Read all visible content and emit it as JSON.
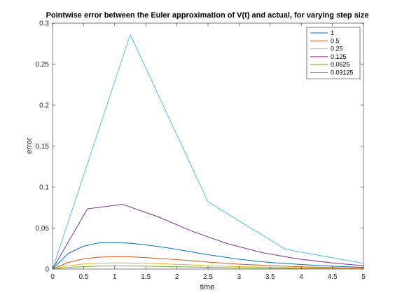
{
  "chart_data": {
    "type": "line",
    "title": "Pointwise error between the Euler approximation of V(t) and actual, for varying step size",
    "xlabel": "time",
    "ylabel": "error",
    "xlim": [
      0,
      5
    ],
    "ylim": [
      0,
      0.3
    ],
    "xticks": [
      "0",
      "0.5",
      "1",
      "1.5",
      "2",
      "2.5",
      "3",
      "3.5",
      "4",
      "4.5",
      "5"
    ],
    "yticks": [
      "0",
      "0.05",
      "0.1",
      "0.15",
      "0.2",
      "0.25",
      "0.3"
    ],
    "grid": false,
    "legend_position": "top-right",
    "series": [
      {
        "name": "1",
        "color": "#0072BD",
        "x": [
          0,
          0.25,
          0.5,
          0.75,
          1.0,
          1.25,
          1.5,
          1.75,
          2.0,
          2.5,
          3.0,
          3.5,
          4.0,
          4.5,
          5.0
        ],
        "y": [
          0,
          0.019,
          0.028,
          0.032,
          0.0325,
          0.0315,
          0.0295,
          0.027,
          0.024,
          0.0175,
          0.012,
          0.008,
          0.0055,
          0.0035,
          0.002
        ]
      },
      {
        "name": "0.5",
        "color": "#D95319",
        "x": [
          0,
          0.25,
          0.5,
          0.75,
          1.0,
          1.25,
          1.5,
          2.0,
          2.5,
          3.0,
          3.5,
          4.0,
          4.5,
          5.0
        ],
        "y": [
          0,
          0.008,
          0.0125,
          0.0145,
          0.0152,
          0.015,
          0.014,
          0.0115,
          0.0085,
          0.006,
          0.0042,
          0.0028,
          0.0018,
          0.001
        ]
      },
      {
        "name": "0.25",
        "color": "#EDB120",
        "x": [
          0,
          0.25,
          0.5,
          0.75,
          1.0,
          1.25,
          1.5,
          2.0,
          2.5,
          3.0,
          3.5,
          4.0,
          4.5,
          5.0
        ],
        "y": [
          0,
          0.004,
          0.0062,
          0.0072,
          0.0075,
          0.0074,
          0.007,
          0.0058,
          0.0043,
          0.003,
          0.0021,
          0.0014,
          0.0009,
          0.0005
        ]
      },
      {
        "name": "0.125",
        "color": "#7E2F8E",
        "x": [
          0,
          0.5625,
          1.125,
          1.6875,
          2.25,
          2.8125,
          3.375,
          3.9375,
          4.5,
          5.0
        ],
        "y": [
          0,
          0.0735,
          0.079,
          0.064,
          0.046,
          0.031,
          0.02,
          0.0125,
          0.0075,
          0.004
        ]
      },
      {
        "name": "0.0625",
        "color": "#77AC30",
        "x": [
          0,
          0.25,
          0.5,
          0.75,
          1.0,
          1.25,
          1.5,
          2.0,
          2.5,
          3.0,
          3.5,
          4.0,
          4.5,
          5.0
        ],
        "y": [
          0,
          0.002,
          0.003,
          0.0036,
          0.0038,
          0.0037,
          0.0035,
          0.0029,
          0.0021,
          0.0015,
          0.001,
          0.0007,
          0.0004,
          0.0002
        ]
      },
      {
        "name": "0.03125",
        "color": "#4DBEEE",
        "x": [
          0,
          1.25,
          2.5,
          3.75,
          5.0
        ],
        "y": [
          0,
          0.286,
          0.082,
          0.024,
          0.007
        ]
      }
    ]
  }
}
